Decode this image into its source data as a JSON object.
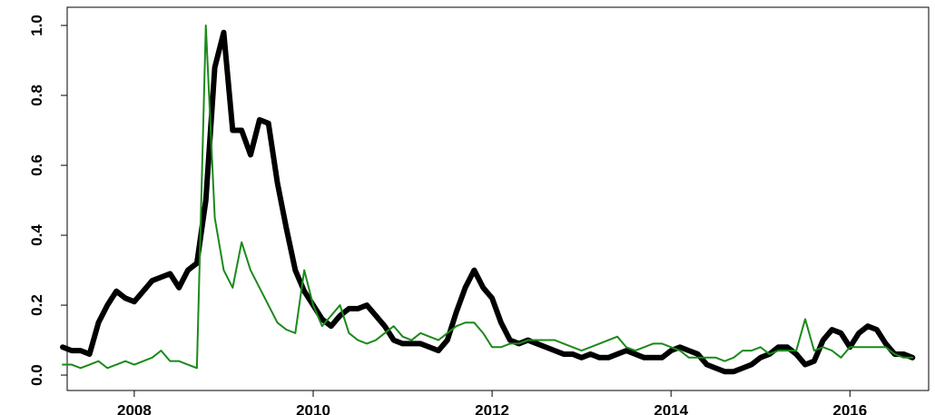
{
  "chart_data": {
    "type": "line",
    "x": [
      2007.2,
      2007.3,
      2007.4,
      2007.5,
      2007.6,
      2007.7,
      2007.8,
      2007.9,
      2008.0,
      2008.1,
      2008.2,
      2008.3,
      2008.4,
      2008.5,
      2008.6,
      2008.7,
      2008.8,
      2008.9,
      2009.0,
      2009.1,
      2009.2,
      2009.3,
      2009.4,
      2009.5,
      2009.6,
      2009.7,
      2009.8,
      2009.9,
      2010.0,
      2010.1,
      2010.2,
      2010.3,
      2010.4,
      2010.5,
      2010.6,
      2010.7,
      2010.8,
      2010.9,
      2011.0,
      2011.1,
      2011.2,
      2011.3,
      2011.4,
      2011.5,
      2011.6,
      2011.7,
      2011.8,
      2011.9,
      2012.0,
      2012.1,
      2012.2,
      2012.3,
      2012.4,
      2012.5,
      2012.6,
      2012.7,
      2012.8,
      2012.9,
      2013.0,
      2013.1,
      2013.2,
      2013.3,
      2013.4,
      2013.5,
      2013.6,
      2013.7,
      2013.8,
      2013.9,
      2014.0,
      2014.1,
      2014.2,
      2014.3,
      2014.4,
      2014.5,
      2014.6,
      2014.7,
      2014.8,
      2014.9,
      2015.0,
      2015.1,
      2015.2,
      2015.3,
      2015.4,
      2015.5,
      2015.6,
      2015.7,
      2015.8,
      2015.9,
      2016.0,
      2016.1,
      2016.2,
      2016.3,
      2016.4,
      2016.5,
      2016.6,
      2016.7
    ],
    "series": [
      {
        "color": "#000000",
        "width": 6,
        "values": [
          0.08,
          0.07,
          0.07,
          0.06,
          0.15,
          0.2,
          0.24,
          0.22,
          0.21,
          0.24,
          0.27,
          0.28,
          0.29,
          0.25,
          0.3,
          0.32,
          0.5,
          0.88,
          0.98,
          0.7,
          0.7,
          0.63,
          0.73,
          0.72,
          0.55,
          0.42,
          0.3,
          0.24,
          0.2,
          0.16,
          0.14,
          0.17,
          0.19,
          0.19,
          0.2,
          0.17,
          0.14,
          0.1,
          0.09,
          0.09,
          0.09,
          0.08,
          0.07,
          0.1,
          0.18,
          0.25,
          0.3,
          0.25,
          0.22,
          0.15,
          0.1,
          0.09,
          0.1,
          0.09,
          0.08,
          0.07,
          0.06,
          0.06,
          0.05,
          0.06,
          0.05,
          0.05,
          0.06,
          0.07,
          0.06,
          0.05,
          0.05,
          0.05,
          0.07,
          0.08,
          0.07,
          0.06,
          0.03,
          0.02,
          0.01,
          0.01,
          0.02,
          0.03,
          0.05,
          0.06,
          0.08,
          0.08,
          0.06,
          0.03,
          0.04,
          0.1,
          0.13,
          0.12,
          0.08,
          0.12,
          0.14,
          0.13,
          0.09,
          0.06,
          0.06,
          0.05
        ]
      },
      {
        "color": "#1a8a1a",
        "width": 2,
        "values": [
          0.03,
          0.03,
          0.02,
          0.03,
          0.04,
          0.02,
          0.03,
          0.04,
          0.03,
          0.04,
          0.05,
          0.07,
          0.04,
          0.04,
          0.03,
          0.02,
          1.0,
          0.45,
          0.3,
          0.25,
          0.38,
          0.3,
          0.25,
          0.2,
          0.15,
          0.13,
          0.12,
          0.3,
          0.2,
          0.14,
          0.17,
          0.2,
          0.12,
          0.1,
          0.09,
          0.1,
          0.12,
          0.14,
          0.11,
          0.1,
          0.12,
          0.11,
          0.1,
          0.12,
          0.14,
          0.15,
          0.15,
          0.12,
          0.08,
          0.08,
          0.09,
          0.09,
          0.1,
          0.1,
          0.1,
          0.1,
          0.09,
          0.08,
          0.07,
          0.08,
          0.09,
          0.1,
          0.11,
          0.08,
          0.07,
          0.08,
          0.09,
          0.09,
          0.08,
          0.07,
          0.05,
          0.05,
          0.05,
          0.05,
          0.04,
          0.05,
          0.07,
          0.07,
          0.08,
          0.06,
          0.07,
          0.07,
          0.07,
          0.16,
          0.07,
          0.08,
          0.07,
          0.05,
          0.08,
          0.08,
          0.08,
          0.08,
          0.08,
          0.06,
          0.05,
          0.05
        ]
      }
    ],
    "xlim": [
      2007.25,
      2016.88
    ],
    "xticks": [
      2008,
      2010,
      2012,
      2014,
      2016
    ],
    "ylim": [
      -0.044,
      1.052
    ],
    "yticks": [
      {
        "value": 0,
        "label": "0.0"
      },
      0.2,
      0.4,
      0.6,
      0.8,
      {
        "value": 1,
        "label": "1.0"
      }
    ]
  }
}
